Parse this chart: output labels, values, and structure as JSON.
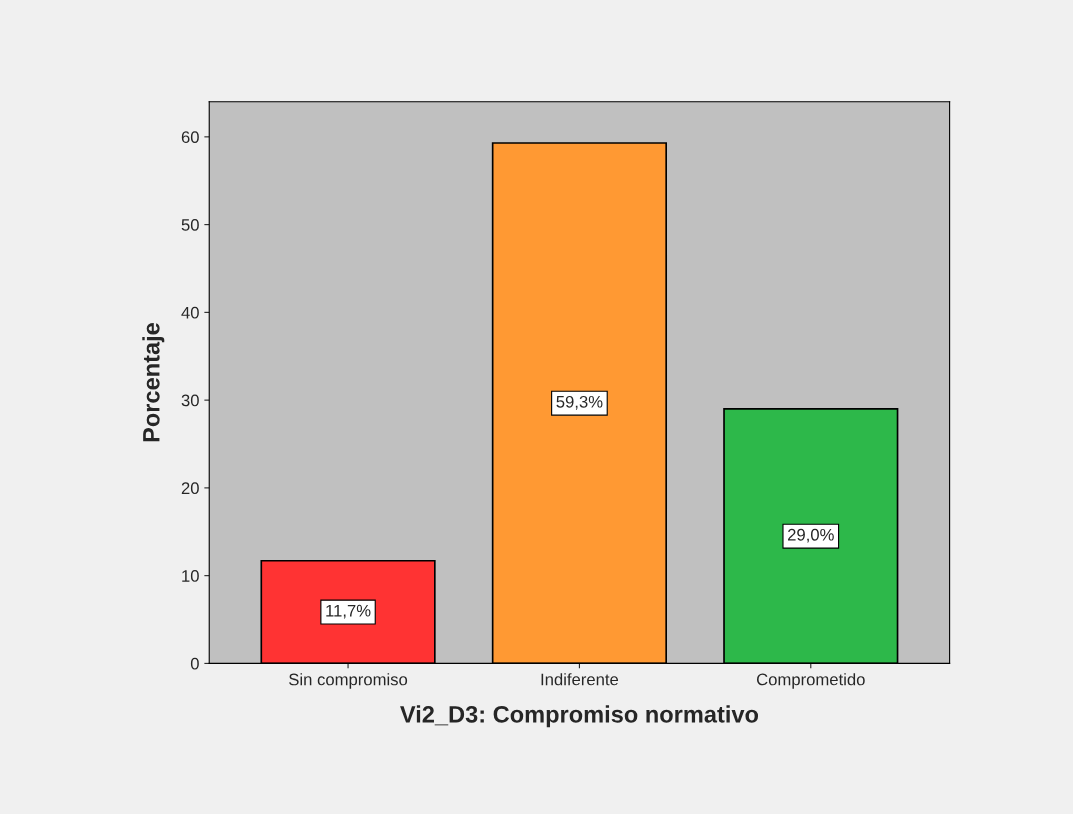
{
  "chart_data": {
    "type": "bar",
    "xlabel": "Vi2_D3: Compromiso normativo",
    "ylabel": "Porcentaje",
    "categories": [
      "Sin compromiso",
      "Indiferente",
      "Comprometido"
    ],
    "values": [
      11.7,
      59.3,
      29.0
    ],
    "value_labels": [
      "11,7%",
      "59,3%",
      "29,0%"
    ],
    "colors": [
      "#ff3333",
      "#ff9933",
      "#2db84a"
    ],
    "ylim": [
      0,
      64
    ],
    "yticks": [
      0,
      10,
      20,
      30,
      40,
      50,
      60
    ],
    "grid": false
  }
}
